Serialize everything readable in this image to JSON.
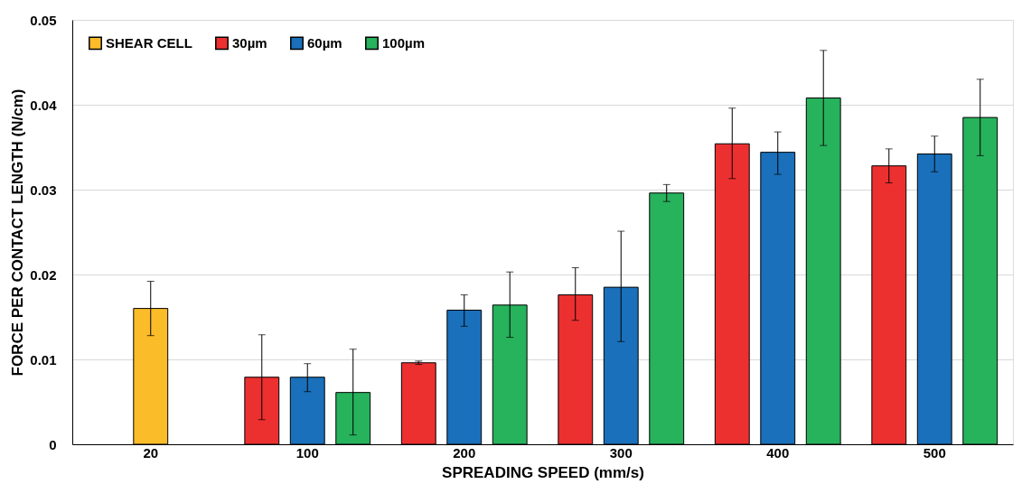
{
  "chart_data": {
    "type": "bar",
    "xlabel": "SPREADING SPEED (mm/s)",
    "ylabel": "FORCE PER CONTACT LENGTH (N/cm)",
    "categories": [
      "20",
      "100",
      "200",
      "300",
      "400",
      "500"
    ],
    "series": [
      {
        "name": "SHEAR CELL",
        "color": "#fbbc2a",
        "values": [
          0.016,
          null,
          null,
          null,
          null,
          null
        ],
        "errors": [
          [
            0.0128,
            0.0192
          ],
          null,
          null,
          null,
          null,
          null
        ]
      },
      {
        "name": "30µm",
        "color": "#ec3030",
        "values": [
          null,
          0.0079,
          0.0096,
          0.0176,
          0.0354,
          0.0328
        ],
        "errors": [
          null,
          [
            0.0029,
            0.0129
          ],
          [
            0.0094,
            0.0098
          ],
          [
            0.0146,
            0.0208
          ],
          [
            0.0313,
            0.0396
          ],
          [
            0.0308,
            0.0348
          ]
        ]
      },
      {
        "name": "60µm",
        "color": "#1a70ba",
        "values": [
          null,
          0.0079,
          0.0158,
          0.0185,
          0.0344,
          0.0342
        ],
        "errors": [
          null,
          [
            0.0062,
            0.0095
          ],
          [
            0.0139,
            0.0176
          ],
          [
            0.0121,
            0.0251
          ],
          [
            0.0318,
            0.0368
          ],
          [
            0.0321,
            0.0363
          ]
        ]
      },
      {
        "name": "100µm",
        "color": "#27b25c",
        "values": [
          null,
          0.0061,
          0.0164,
          0.0296,
          0.0408,
          0.0385
        ],
        "errors": [
          null,
          [
            0.0011,
            0.0112
          ],
          [
            0.0126,
            0.0203
          ],
          [
            0.0286,
            0.0306
          ],
          [
            0.0352,
            0.0464
          ],
          [
            0.034,
            0.043
          ]
        ]
      }
    ],
    "ylim": [
      0,
      0.05
    ],
    "yticks": [
      0,
      0.01,
      0.02,
      0.03,
      0.04,
      0.05
    ],
    "grid": "y",
    "legend": "top left"
  }
}
